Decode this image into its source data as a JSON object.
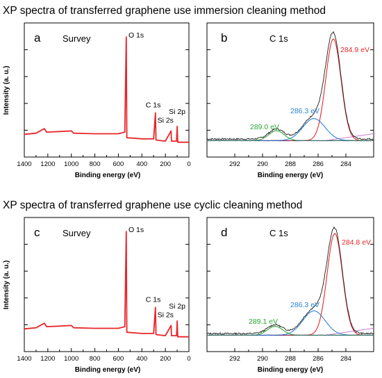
{
  "colors": {
    "survey": "#e8262a",
    "data": "#1b1b1b",
    "fit_284": "#e8262a",
    "fit_286": "#2a86d6",
    "fit_289": "#2ea836",
    "envelope": "#4a4a4a",
    "background": "#c87dd6",
    "baseline": "#3a3a8c"
  },
  "chart_data": [
    {
      "type": "line",
      "panel": "a",
      "heading": "XP spectra of transferred graphene use immersion cleaning method",
      "title": "Survey",
      "xlabel": "Binding energy (eV)",
      "ylabel": "Intensity (a. u.)",
      "xlim": [
        1400,
        0
      ],
      "ylim": [
        0,
        100
      ],
      "xticks": [
        1400,
        1200,
        1000,
        800,
        600,
        400,
        200,
        0
      ],
      "x_reversed": true,
      "y_tick_labels": false,
      "grid": false,
      "peaks": [
        {
          "label": "O 1s",
          "x": 532,
          "y": 95
        },
        {
          "label": "C 1s",
          "x": 285,
          "y": 28
        },
        {
          "label": "Si 2s",
          "x": 150,
          "y": 12
        },
        {
          "label": "Si 2p",
          "x": 100,
          "y": 16
        }
      ],
      "series": [
        {
          "values": [
            {
              "x": 1400,
              "y": 9
            },
            {
              "x": 1300,
              "y": 10
            },
            {
              "x": 1230,
              "y": 14
            },
            {
              "x": 1210,
              "y": 11
            },
            {
              "x": 1100,
              "y": 11.5
            },
            {
              "x": 1000,
              "y": 12
            },
            {
              "x": 980,
              "y": 10
            },
            {
              "x": 800,
              "y": 9.5
            },
            {
              "x": 600,
              "y": 9.5
            },
            {
              "x": 545,
              "y": 11
            },
            {
              "x": 533,
              "y": 95
            },
            {
              "x": 528,
              "y": 6
            },
            {
              "x": 400,
              "y": 5
            },
            {
              "x": 300,
              "y": 5
            },
            {
              "x": 285,
              "y": 28
            },
            {
              "x": 280,
              "y": 4
            },
            {
              "x": 200,
              "y": 3
            },
            {
              "x": 152,
              "y": 12
            },
            {
              "x": 148,
              "y": 3
            },
            {
              "x": 105,
              "y": 3
            },
            {
              "x": 100,
              "y": 16
            },
            {
              "x": 95,
              "y": 2
            },
            {
              "x": 0,
              "y": 2
            }
          ]
        }
      ]
    },
    {
      "type": "line",
      "panel": "b",
      "title": "C 1s",
      "xlabel": "Binding energy (eV)",
      "xlim": [
        294,
        282
      ],
      "ylim": [
        0,
        100
      ],
      "xticks": [
        292,
        290,
        288,
        286,
        284
      ],
      "x_reversed": true,
      "y_tick_labels": false,
      "grid": false,
      "fit_peaks": [
        {
          "label": "284.9 eV",
          "center": 284.9,
          "height": 92,
          "width": 0.55
        },
        {
          "label": "286.3 eV",
          "center": 286.3,
          "height": 20,
          "width": 0.8
        },
        {
          "label": "289.0 eV",
          "center": 289.0,
          "height": 9,
          "width": 0.55
        }
      ],
      "background": {
        "left": 0,
        "right": 4
      }
    },
    {
      "type": "line",
      "panel": "c",
      "heading": "XP spectra of transferred graphene use cyclic cleaning method",
      "title": "Survey",
      "xlabel": "Binding energy (eV)",
      "ylabel": "Intensity (a. u.)",
      "xlim": [
        1400,
        0
      ],
      "ylim": [
        0,
        100
      ],
      "xticks": [
        1400,
        1200,
        1000,
        800,
        600,
        400,
        200,
        0
      ],
      "x_reversed": true,
      "y_tick_labels": false,
      "grid": false,
      "peaks": [
        {
          "label": "O 1s",
          "x": 532,
          "y": 95
        },
        {
          "label": "C 1s",
          "x": 285,
          "y": 28
        },
        {
          "label": "Si 2s",
          "x": 150,
          "y": 12
        },
        {
          "label": "Si 2p",
          "x": 100,
          "y": 16
        }
      ],
      "series": [
        {
          "values": [
            {
              "x": 1400,
              "y": 9
            },
            {
              "x": 1300,
              "y": 10
            },
            {
              "x": 1230,
              "y": 14
            },
            {
              "x": 1210,
              "y": 11
            },
            {
              "x": 1100,
              "y": 11.5
            },
            {
              "x": 1000,
              "y": 12
            },
            {
              "x": 980,
              "y": 10
            },
            {
              "x": 800,
              "y": 9.5
            },
            {
              "x": 600,
              "y": 9.5
            },
            {
              "x": 545,
              "y": 11
            },
            {
              "x": 533,
              "y": 95
            },
            {
              "x": 528,
              "y": 6
            },
            {
              "x": 400,
              "y": 5
            },
            {
              "x": 300,
              "y": 5
            },
            {
              "x": 285,
              "y": 28
            },
            {
              "x": 280,
              "y": 4
            },
            {
              "x": 200,
              "y": 3
            },
            {
              "x": 152,
              "y": 12
            },
            {
              "x": 148,
              "y": 3
            },
            {
              "x": 105,
              "y": 3
            },
            {
              "x": 100,
              "y": 16
            },
            {
              "x": 95,
              "y": 2
            },
            {
              "x": 0,
              "y": 2
            }
          ]
        }
      ]
    },
    {
      "type": "line",
      "panel": "d",
      "title": "C 1s",
      "xlabel": "Binding energy (eV)",
      "xlim": [
        294,
        282
      ],
      "ylim": [
        0,
        100
      ],
      "xticks": [
        292,
        290,
        288,
        286,
        284
      ],
      "x_reversed": true,
      "y_tick_labels": false,
      "grid": false,
      "fit_peaks": [
        {
          "label": "284.8 eV",
          "center": 284.8,
          "height": 92,
          "width": 0.55
        },
        {
          "label": "286.3 eV",
          "center": 286.3,
          "height": 22,
          "width": 0.8
        },
        {
          "label": "289.1 eV",
          "center": 289.1,
          "height": 8,
          "width": 0.55
        }
      ],
      "background": {
        "left": 0,
        "right": 4
      }
    }
  ]
}
